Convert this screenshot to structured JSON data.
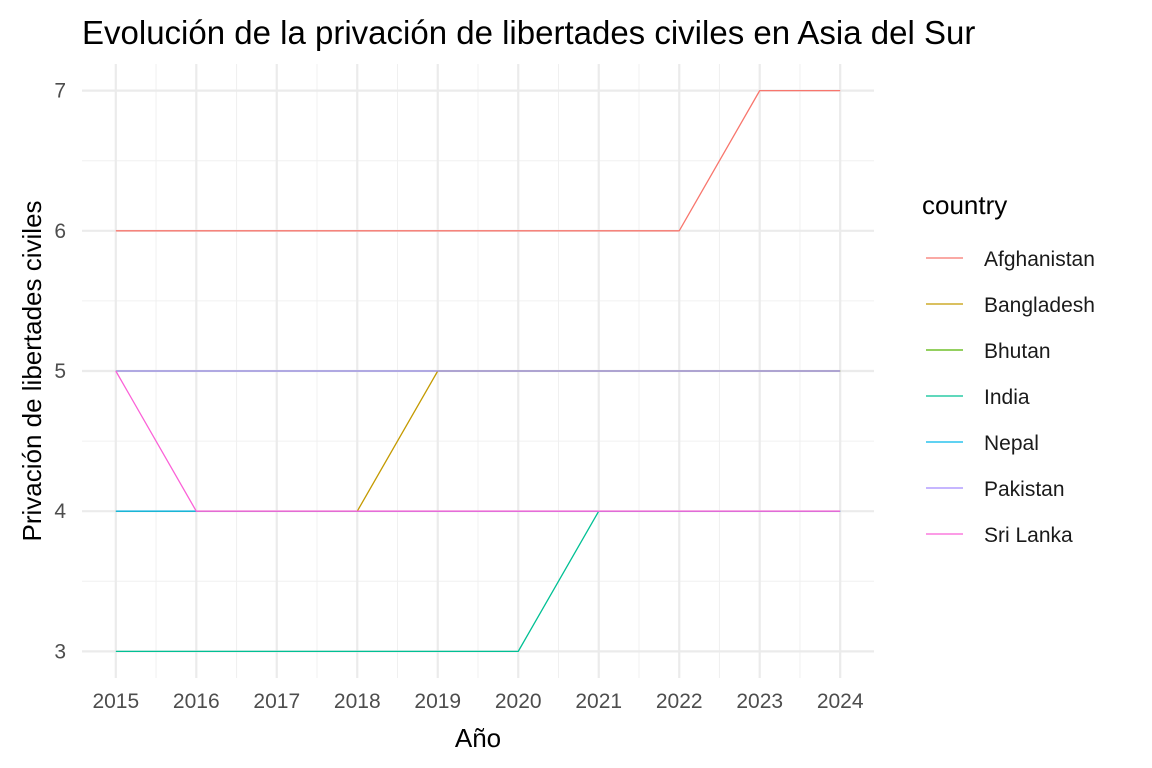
{
  "chart_data": {
    "type": "line",
    "title": "Evolución de la privación de libertades civiles en Asia del Sur",
    "xlabel": "Año",
    "ylabel": "Privación de libertades civiles",
    "x": [
      2015,
      2016,
      2017,
      2018,
      2019,
      2020,
      2021,
      2022,
      2023,
      2024
    ],
    "x_ticks": [
      "2015",
      "2016",
      "2017",
      "2018",
      "2019",
      "2020",
      "2021",
      "2022",
      "2023",
      "2024"
    ],
    "y_ticks": [
      "3",
      "4",
      "5",
      "6",
      "7"
    ],
    "xlim": [
      2014.58,
      2024.42
    ],
    "ylim": [
      2.81,
      7.19
    ],
    "grid": true,
    "legend_title": "country",
    "legend_position": "right",
    "series": [
      {
        "name": "Afghanistan",
        "color": "#F8766D",
        "values": [
          6,
          6,
          6,
          6,
          6,
          6,
          6,
          6,
          7,
          7
        ]
      },
      {
        "name": "Bangladesh",
        "color": "#C49A00",
        "values": [
          4,
          4,
          4,
          4,
          5,
          5,
          5,
          5,
          5,
          5
        ]
      },
      {
        "name": "Bhutan",
        "color": "#53B400",
        "values": [
          5,
          5,
          5,
          5,
          5,
          5,
          5,
          5,
          5,
          5
        ]
      },
      {
        "name": "India",
        "color": "#00C094",
        "values": [
          3,
          3,
          3,
          3,
          3,
          3,
          4,
          4,
          4,
          4
        ]
      },
      {
        "name": "Nepal",
        "color": "#00B6EB",
        "values": [
          4,
          4,
          4,
          4,
          4,
          4,
          4,
          4,
          4,
          4
        ]
      },
      {
        "name": "Pakistan",
        "color": "#A58AFF",
        "values": [
          5,
          5,
          5,
          5,
          5,
          5,
          5,
          5,
          5,
          5
        ]
      },
      {
        "name": "Sri Lanka",
        "color": "#FB61D7",
        "values": [
          5,
          4,
          4,
          4,
          4,
          4,
          4,
          4,
          4,
          4
        ]
      }
    ]
  }
}
